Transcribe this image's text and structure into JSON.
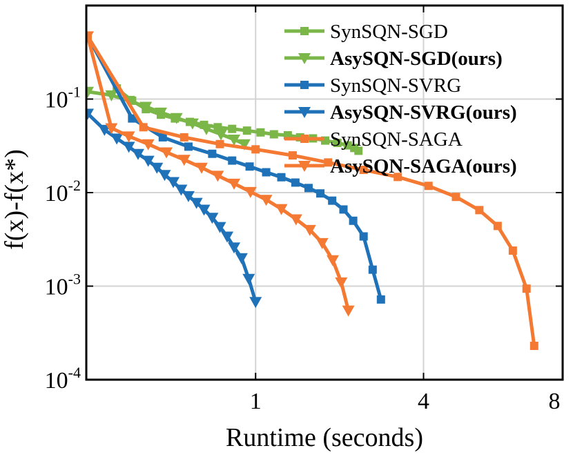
{
  "chart_data": {
    "type": "line",
    "title": "",
    "xlabel": "Runtime (seconds)",
    "ylabel": "f(x)-f(x*)",
    "xscale": "sqrt",
    "yscale": "log",
    "xlim": [
      0,
      8
    ],
    "ylim_exp": [
      -4,
      0
    ],
    "xticks": [
      {
        "value": 1,
        "label": "1"
      },
      {
        "value": 4,
        "label": "4"
      },
      {
        "value": 8,
        "label": "8"
      }
    ],
    "yticks": [
      {
        "exp": -4,
        "base": "10",
        "sup": "-4"
      },
      {
        "exp": -3,
        "base": "10",
        "sup": "-3"
      },
      {
        "exp": -2,
        "base": "10",
        "sup": "-2"
      },
      {
        "exp": -1,
        "base": "10",
        "sup": "-1"
      }
    ],
    "grid": true,
    "legend_position": "top-right",
    "series": [
      {
        "name": "SynSQN-SGD",
        "color": "#7ab648",
        "marker": "square",
        "bold": false,
        "x": [
          0.0,
          0.03,
          0.07,
          0.12,
          0.19,
          0.27,
          0.37,
          0.48,
          0.6,
          0.74,
          0.9,
          1.06,
          1.23,
          1.42,
          1.6,
          1.8,
          2.0,
          2.21,
          2.4,
          2.52,
          2.6
        ],
        "y": [
          0.47,
          0.13,
          0.096,
          0.078,
          0.068,
          0.062,
          0.057,
          0.053,
          0.05,
          0.048,
          0.046,
          0.044,
          0.042,
          0.041,
          0.039,
          0.038,
          0.036,
          0.034,
          0.032,
          0.03,
          0.028
        ]
      },
      {
        "name": "AsySQN-SGD(ours)",
        "color": "#7ab648",
        "marker": "triangle-down",
        "bold": true,
        "x": [
          0.0,
          0.02,
          0.06,
          0.12,
          0.19,
          0.28,
          0.39,
          0.5,
          0.63,
          0.76,
          0.87
        ],
        "y": [
          0.12,
          0.11,
          0.096,
          0.083,
          0.072,
          0.063,
          0.055,
          0.048,
          0.042,
          0.037,
          0.033
        ]
      },
      {
        "name": "SynSQN-SVRG",
        "color": "#1f72b8",
        "marker": "square",
        "bold": false,
        "x": [
          0.0,
          0.07,
          0.2,
          0.36,
          0.55,
          0.74,
          0.93,
          1.13,
          1.33,
          1.53,
          1.73,
          1.92,
          2.12,
          2.32,
          2.5,
          2.7,
          2.88,
          3.05
        ],
        "y": [
          0.47,
          0.062,
          0.039,
          0.031,
          0.026,
          0.022,
          0.019,
          0.0165,
          0.0146,
          0.0128,
          0.0112,
          0.0098,
          0.0082,
          0.0066,
          0.005,
          0.0034,
          0.0015,
          0.00072
        ]
      },
      {
        "name": "AsySQN-SVRG(ours)",
        "color": "#1f72b8",
        "marker": "triangle-down",
        "bold": true,
        "x": [
          0.0,
          0.01,
          0.03,
          0.06,
          0.09,
          0.13,
          0.17,
          0.21,
          0.26,
          0.31,
          0.36,
          0.42,
          0.48,
          0.55,
          0.62,
          0.69,
          0.76,
          0.84,
          0.92,
          1.0
        ],
        "y": [
          0.07,
          0.047,
          0.038,
          0.031,
          0.026,
          0.022,
          0.0185,
          0.0155,
          0.013,
          0.0108,
          0.0092,
          0.0078,
          0.0066,
          0.0054,
          0.0043,
          0.0034,
          0.0026,
          0.002,
          0.0012,
          0.00068
        ]
      },
      {
        "name": "SynSQN-SAGA",
        "color": "#f47a33",
        "marker": "square",
        "bold": false,
        "x": [
          0.0,
          0.11,
          0.33,
          0.62,
          1.0,
          1.49,
          2.05,
          2.7,
          3.41,
          4.12,
          4.81,
          5.44,
          5.96,
          6.41,
          6.83,
          7.07
        ],
        "y": [
          0.47,
          0.05,
          0.039,
          0.033,
          0.029,
          0.025,
          0.021,
          0.0175,
          0.0147,
          0.0118,
          0.009,
          0.0065,
          0.0044,
          0.0024,
          0.00094,
          0.00023
        ]
      },
      {
        "name": "AsySQN-SAGA(ours)",
        "color": "#f47a33",
        "marker": "triangle-down",
        "bold": true,
        "x": [
          0.0,
          0.02,
          0.06,
          0.13,
          0.22,
          0.33,
          0.46,
          0.6,
          0.76,
          0.94,
          1.13,
          1.33,
          1.54,
          1.75,
          1.95,
          2.13,
          2.28,
          2.41
        ],
        "y": [
          0.47,
          0.049,
          0.04,
          0.033,
          0.027,
          0.0225,
          0.0185,
          0.0152,
          0.0125,
          0.0102,
          0.0084,
          0.0067,
          0.0052,
          0.004,
          0.0029,
          0.0019,
          0.0011,
          0.00055
        ]
      }
    ]
  }
}
